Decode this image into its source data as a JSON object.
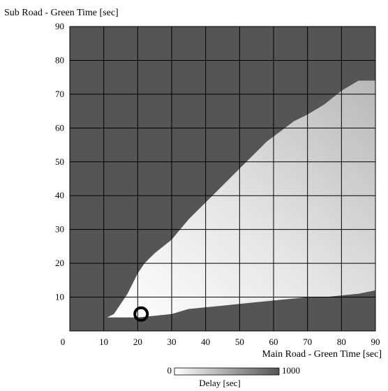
{
  "chart_data": {
    "type": "heatmap",
    "title": "",
    "xlabel": "Main Road - Green Time [sec]",
    "ylabel": "Sub Road - Green Time [sec]",
    "xlim": [
      0,
      90
    ],
    "ylim": [
      0,
      90
    ],
    "x_ticks": [
      "0",
      "10",
      "20",
      "30",
      "40",
      "50",
      "60",
      "70",
      "80",
      "90"
    ],
    "y_ticks": [
      "10",
      "20",
      "30",
      "40",
      "50",
      "60",
      "70",
      "80",
      "90"
    ],
    "grid": true,
    "colorbar": {
      "label": "Delay [sec]",
      "min_label": "0",
      "max_label": "1000",
      "min": 0,
      "max": 1000,
      "low_color": "#ffffff",
      "high_color": "#555555"
    },
    "background_color": "#555555",
    "region": {
      "description_values": "low-delay region boundary in data units (main, sub)",
      "boundary": [
        [
          11,
          4
        ],
        [
          13,
          5
        ],
        [
          15,
          8
        ],
        [
          17,
          11
        ],
        [
          18,
          13
        ],
        [
          20,
          17
        ],
        [
          22,
          20
        ],
        [
          25,
          23
        ],
        [
          30,
          27
        ],
        [
          35,
          33
        ],
        [
          40,
          38
        ],
        [
          45,
          43
        ],
        [
          50,
          48
        ],
        [
          55,
          53
        ],
        [
          58,
          56
        ],
        [
          62,
          59
        ],
        [
          66,
          62
        ],
        [
          70,
          64
        ],
        [
          75,
          67
        ],
        [
          80,
          71
        ],
        [
          85,
          74
        ],
        [
          90,
          74
        ],
        [
          90,
          12
        ],
        [
          85,
          11
        ],
        [
          80,
          10.5
        ],
        [
          75,
          10
        ],
        [
          70,
          10
        ],
        [
          65,
          9.5
        ],
        [
          60,
          9
        ],
        [
          55,
          8.5
        ],
        [
          50,
          8
        ],
        [
          45,
          7.5
        ],
        [
          40,
          7
        ],
        [
          35,
          6.5
        ],
        [
          30,
          5
        ],
        [
          25,
          4.5
        ],
        [
          20,
          4
        ],
        [
          15,
          4
        ],
        [
          11,
          4
        ]
      ]
    },
    "marker": {
      "x": 21,
      "y": 5,
      "shape": "circle"
    }
  }
}
